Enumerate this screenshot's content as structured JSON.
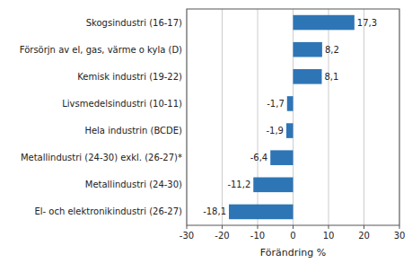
{
  "chart_data": {
    "type": "bar",
    "orientation": "horizontal",
    "categories": [
      "El- och elektronikindustri (26-27)",
      "Metallindustri (24-30)",
      "Metallindustri (24-30) exkl. (26-27)*",
      "Hela industrin (BCDE)",
      "Livsmedelsindustri (10-11)",
      "Kemisk industri (19-22)",
      "Försörjn av el, gas, värme o kyla (D)",
      "Skogsindustri (16-17)"
    ],
    "values": [
      -18.1,
      -11.2,
      -6.4,
      -1.9,
      -1.7,
      8.1,
      8.2,
      17.3
    ],
    "value_labels": [
      "-18,1",
      "-11,2",
      "-6,4",
      "-1,9",
      "-1,7",
      "8,1",
      "8,2",
      "17,3"
    ],
    "data_labels": true,
    "color": "#2E75B6",
    "xlabel": "Förändring %",
    "xlim": [
      -30,
      30
    ],
    "xticks": [
      -30,
      -20,
      -10,
      0,
      10,
      20,
      30
    ],
    "grid": true
  }
}
